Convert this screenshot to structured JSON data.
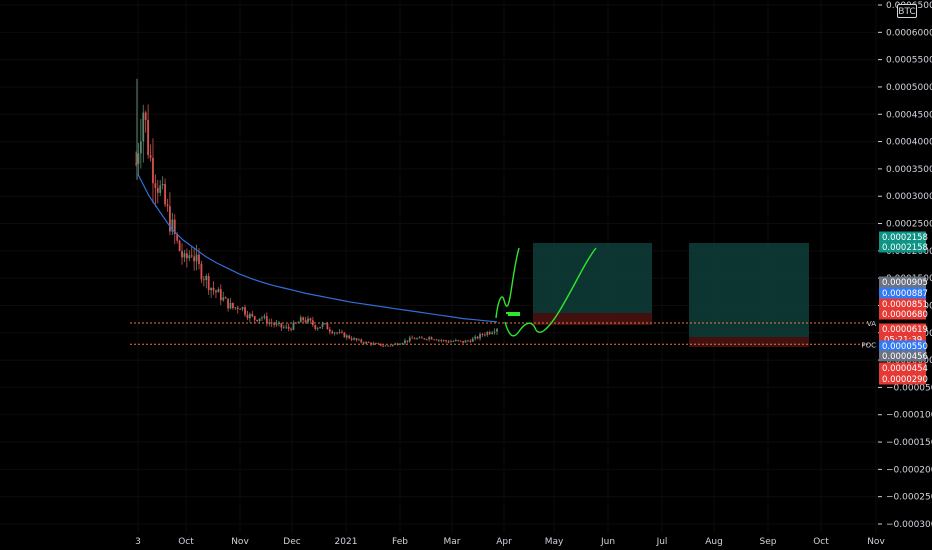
{
  "symbol": "BTC",
  "countdown": "05:21:39",
  "colors": {
    "background": "#000000",
    "grid": "#0c0c0c",
    "up_candle": "#5b8a72",
    "down_candle": "#d9534f",
    "ma_line": "#2f6fd6",
    "drawing_green": "#2ee62e",
    "level_orange": "#f0793a",
    "target_zone": "#0d3b36",
    "stop_zone": "#4a1212",
    "tag_teal": "#0f9384",
    "tag_blue": "#3179f5",
    "tag_gray": "#6b7280",
    "tag_red": "#e53935"
  },
  "chart_data": {
    "type": "candlestick",
    "y_axis_ticks": [
      "0.0006500",
      "0.0006000",
      "0.0005500",
      "0.0005000",
      "0.0004500",
      "0.0004000",
      "0.0003500",
      "0.0003000",
      "0.0002500",
      "0.0002000",
      "0.0001500",
      "0.0001000",
      "0.0000500",
      "0.0000000",
      "-0.0000500",
      "-0.0001000",
      "-0.0001500",
      "-0.0002000",
      "-0.0002500",
      "-0.0003000"
    ],
    "ylim": [
      -0.0003,
      0.00065
    ],
    "x_axis_ticks": [
      "3",
      "Oct",
      "Nov",
      "Dec",
      "2021",
      "Feb",
      "Mar",
      "Apr",
      "May",
      "Jun",
      "Jul",
      "Aug",
      "Sep",
      "Oct",
      "Nov"
    ],
    "price_tags": [
      {
        "value": "0.0002158",
        "color": "#0f9384"
      },
      {
        "value": "0.0002158",
        "color": "#0f9384"
      },
      {
        "value": "0.0000905",
        "color": "#6b7280"
      },
      {
        "value": "0.0000887",
        "color": "#3179f5"
      },
      {
        "value": "0.0000851",
        "color": "#e53935"
      },
      {
        "value": "0.0000680",
        "color": "#e53935"
      },
      {
        "value": "0.0000619",
        "color": "#e53935"
      },
      {
        "value": "0.0000550",
        "color": "#3179f5"
      },
      {
        "value": "0.0000456",
        "color": "#6b7280"
      },
      {
        "value": "0.0000454",
        "color": "#e53935"
      },
      {
        "value": "0.0000290",
        "color": "#e53935"
      }
    ],
    "levels": [
      {
        "label": "VA",
        "value": 6.8e-05
      },
      {
        "label": "POC",
        "value": 2.9e-05
      }
    ],
    "price_series": [
      0.00036,
      0.000465,
      0.00037,
      0.00033,
      0.00029,
      0.00025,
      0.00021,
      0.00018,
      0.0002,
      0.00017,
      0.00015,
      0.00013,
      0.00012,
      0.000105,
      9.5e-05,
      0.0001,
      8.5e-05,
      7.5e-05,
      8e-05,
      7e-05,
      6.5e-05,
      6e-05,
      5.8e-05,
      6.5e-05,
      7.5e-05,
      7e-05,
      6e-05,
      6.5e-05,
      5.5e-05,
      5e-05,
      4.5e-05,
      4e-05,
      3.5e-05,
      3.2e-05,
      3e-05,
      2.8e-05,
      2.6e-05,
      2.8e-05,
      3.2e-05,
      3.6e-05,
      4e-05,
      3.8e-05,
      4.2e-05,
      4e-05,
      3.6e-05,
      3.4e-05,
      3.5e-05,
      3.3e-05,
      3.6e-05,
      4e-05,
      4.8e-05,
      5.2e-05,
      6e-05
    ],
    "ma_series": [
      0.00034,
      0.0003,
      0.00027,
      0.00024,
      0.00022,
      0.000205,
      0.00019,
      0.000178,
      0.000168,
      0.000158,
      0.00015,
      0.000143,
      0.000137,
      0.000132,
      0.000127,
      0.000122,
      0.000118,
      0.000114,
      0.00011,
      0.000106,
      0.000103,
      0.0001,
      9.7e-05,
      9.4e-05,
      9.1e-05,
      8.8e-05,
      8.5e-05,
      8.2e-05,
      7.9e-05,
      7.6e-05,
      7.4e-05,
      7.2e-05,
      7e-05
    ],
    "title": "",
    "xlabel": "",
    "ylabel": "",
    "grid": true
  }
}
